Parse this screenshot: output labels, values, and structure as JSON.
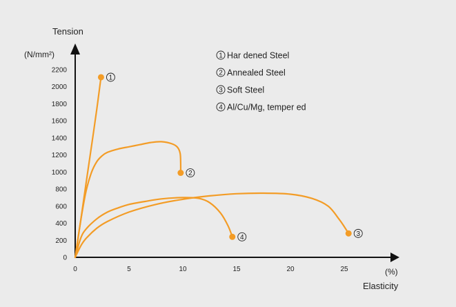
{
  "chart_data": {
    "type": "line",
    "title": "",
    "ylabel": "Tension",
    "ylabel_unit": "(N/mm²)",
    "xlabel": "Elasticity",
    "xlabel_unit": "(%)",
    "xlim": [
      0,
      25
    ],
    "ylim": [
      0,
      2200
    ],
    "x_ticks": [
      0,
      5,
      10,
      15,
      20,
      25
    ],
    "y_ticks": [
      0,
      200,
      400,
      600,
      800,
      1000,
      1200,
      1400,
      1600,
      1800,
      2000,
      2200
    ],
    "grid": false,
    "legend_position": "top-right",
    "color": "#f39c26",
    "series": [
      {
        "id": "1",
        "name": "Har dened Steel",
        "points": [
          [
            0,
            0
          ],
          [
            0.5,
            420
          ],
          [
            1.0,
            860
          ],
          [
            1.5,
            1290
          ],
          [
            2.0,
            1730
          ],
          [
            2.4,
            2110
          ]
        ],
        "end": [
          2.4,
          2110
        ]
      },
      {
        "id": "2",
        "name": "Annealed Steel",
        "points": [
          [
            0,
            0
          ],
          [
            0.5,
            420
          ],
          [
            1.0,
            770
          ],
          [
            1.5,
            990
          ],
          [
            2.0,
            1120
          ],
          [
            2.5,
            1190
          ],
          [
            3.0,
            1230
          ],
          [
            4.0,
            1270
          ],
          [
            5.0,
            1295
          ],
          [
            6.0,
            1320
          ],
          [
            7.0,
            1345
          ],
          [
            8.0,
            1355
          ],
          [
            9.0,
            1330
          ],
          [
            9.5,
            1290
          ],
          [
            9.75,
            1220
          ],
          [
            9.8,
            1100
          ],
          [
            9.8,
            990
          ]
        ],
        "end": [
          9.8,
          990
        ]
      },
      {
        "id": "3",
        "name": "Soft Steel",
        "points": [
          [
            0,
            0
          ],
          [
            0.5,
            130
          ],
          [
            1.0,
            220
          ],
          [
            2.0,
            340
          ],
          [
            3.0,
            420
          ],
          [
            5.0,
            530
          ],
          [
            7.5,
            620
          ],
          [
            10.0,
            680
          ],
          [
            12.5,
            720
          ],
          [
            15.0,
            745
          ],
          [
            17.5,
            752
          ],
          [
            20.0,
            740
          ],
          [
            22.0,
            690
          ],
          [
            23.5,
            600
          ],
          [
            24.5,
            450
          ],
          [
            25.0,
            360
          ],
          [
            25.4,
            280
          ]
        ],
        "end": [
          25.4,
          280
        ]
      },
      {
        "id": "4",
        "name": "Al/Cu/Mg, temper ed",
        "points": [
          [
            0,
            0
          ],
          [
            0.5,
            220
          ],
          [
            1.0,
            330
          ],
          [
            2.0,
            450
          ],
          [
            3.0,
            530
          ],
          [
            4.0,
            580
          ],
          [
            5.0,
            620
          ],
          [
            6.5,
            655
          ],
          [
            8.0,
            685
          ],
          [
            10.0,
            700
          ],
          [
            11.5,
            690
          ],
          [
            12.5,
            640
          ],
          [
            13.5,
            520
          ],
          [
            14.2,
            370
          ],
          [
            14.6,
            240
          ]
        ],
        "end": [
          14.6,
          240
        ]
      }
    ]
  }
}
